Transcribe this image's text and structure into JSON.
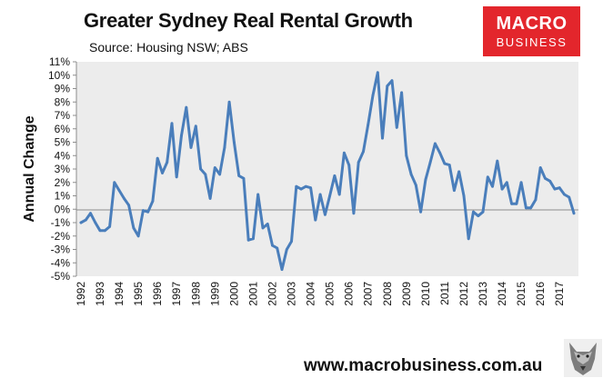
{
  "header": {
    "title": "Greater Sydney Real Rental Growth",
    "subtitle": "Source: Housing NSW; ABS"
  },
  "logo": {
    "line1": "MACRO",
    "line2": "BUSINESS",
    "color": "#e3262c"
  },
  "footer": {
    "website": "www.macrobusiness.com.au",
    "mascot_icon": "wolf-icon"
  },
  "chart_data": {
    "type": "line",
    "title": "Greater Sydney Real Rental Growth",
    "xlabel": "",
    "ylabel": "Annual Change",
    "ylim": [
      -5,
      11
    ],
    "y_ticks": [
      "11%",
      "10%",
      "9%",
      "8%",
      "7%",
      "6%",
      "5%",
      "4%",
      "3%",
      "2%",
      "1%",
      "0%",
      "-1%",
      "-2%",
      "-3%",
      "-4%",
      "-5%"
    ],
    "y_tick_values": [
      11,
      10,
      9,
      8,
      7,
      6,
      5,
      4,
      3,
      2,
      1,
      0,
      -1,
      -2,
      -3,
      -4,
      -5
    ],
    "x_ticks": [
      "1992",
      "1993",
      "1994",
      "1995",
      "1996",
      "1997",
      "1998",
      "1999",
      "2000",
      "2001",
      "2002",
      "2003",
      "2004",
      "2005",
      "2006",
      "2007",
      "2008",
      "2009",
      "2010",
      "2011",
      "2012",
      "2013",
      "2014",
      "2015",
      "2016",
      "2017"
    ],
    "x_range": [
      1992.0,
      2017.75
    ],
    "grid": false,
    "line_color": "#4a7ebb",
    "plot_background": "#ececec",
    "series": [
      {
        "name": "Annual Change",
        "x": [
          1992.0,
          1992.25,
          1992.5,
          1992.75,
          1993.0,
          1993.25,
          1993.5,
          1993.75,
          1994.0,
          1994.25,
          1994.5,
          1994.75,
          1995.0,
          1995.25,
          1995.5,
          1995.75,
          1996.0,
          1996.25,
          1996.5,
          1996.75,
          1997.0,
          1997.25,
          1997.5,
          1997.75,
          1998.0,
          1998.25,
          1998.5,
          1998.75,
          1999.0,
          1999.25,
          1999.5,
          1999.75,
          2000.0,
          2000.25,
          2000.5,
          2000.75,
          2001.0,
          2001.25,
          2001.5,
          2001.75,
          2002.0,
          2002.25,
          2002.5,
          2002.75,
          2003.0,
          2003.25,
          2003.5,
          2003.75,
          2004.0,
          2004.25,
          2004.5,
          2004.75,
          2005.0,
          2005.25,
          2005.5,
          2005.75,
          2006.0,
          2006.25,
          2006.5,
          2006.75,
          2007.0,
          2007.25,
          2007.5,
          2007.75,
          2008.0,
          2008.25,
          2008.5,
          2008.75,
          2009.0,
          2009.25,
          2009.5,
          2009.75,
          2010.0,
          2010.25,
          2010.5,
          2010.75,
          2011.0,
          2011.25,
          2011.5,
          2011.75,
          2012.0,
          2012.25,
          2012.5,
          2012.75,
          2013.0,
          2013.25,
          2013.5,
          2013.75,
          2014.0,
          2014.25,
          2014.5,
          2014.75,
          2015.0,
          2015.25,
          2015.5,
          2015.75,
          2016.0,
          2016.25,
          2016.5,
          2016.75,
          2017.0,
          2017.25,
          2017.5,
          2017.75
        ],
        "values": [
          -1.0,
          -0.8,
          -0.3,
          -1.0,
          -1.6,
          -1.6,
          -1.3,
          2.0,
          1.4,
          0.8,
          0.3,
          -1.4,
          -2.0,
          -0.1,
          -0.2,
          0.6,
          3.8,
          2.7,
          3.5,
          6.4,
          2.4,
          5.5,
          7.6,
          4.6,
          6.2,
          3.0,
          2.6,
          0.8,
          3.1,
          2.6,
          4.6,
          8.0,
          5.0,
          2.5,
          2.3,
          -2.3,
          -2.2,
          1.1,
          -1.4,
          -1.1,
          -2.7,
          -2.9,
          -4.5,
          -3.0,
          -2.4,
          1.7,
          1.5,
          1.7,
          1.6,
          -0.8,
          1.1,
          -0.4,
          1.0,
          2.5,
          1.1,
          4.2,
          3.3,
          -0.3,
          3.5,
          4.3,
          6.3,
          8.5,
          10.2,
          5.3,
          9.2,
          9.6,
          6.1,
          8.7,
          4.0,
          2.6,
          1.8,
          -0.2,
          2.2,
          3.5,
          4.9,
          4.2,
          3.4,
          3.3,
          1.4,
          2.8,
          1.0,
          -2.2,
          -0.2,
          -0.5,
          -0.2,
          2.4,
          1.7,
          3.6,
          1.5,
          2.0,
          0.4,
          0.4,
          2.0,
          0.1,
          0.1,
          0.7,
          3.1,
          2.3,
          2.1,
          1.5,
          1.6,
          1.1,
          0.9,
          -0.3
        ]
      }
    ]
  }
}
